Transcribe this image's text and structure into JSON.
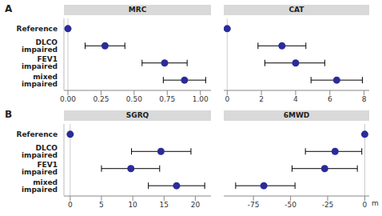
{
  "chart_data": [
    {
      "type": "forest",
      "title": "MRC",
      "annotations": [
        "A"
      ],
      "categories": [
        "Reference",
        "DLCO impaired",
        "FEV1 impaired",
        "mixed impaired"
      ],
      "values": [
        0,
        0.28,
        0.73,
        0.88
      ],
      "ci_low": [
        null,
        0.13,
        0.56,
        0.72
      ],
      "ci_high": [
        null,
        0.43,
        0.9,
        1.04
      ],
      "xlim": [
        -0.03,
        1.08
      ],
      "xticks": [
        {
          "value": 0,
          "label": "0.00"
        },
        {
          "value": 0.25,
          "label": "0.25"
        },
        {
          "value": 0.5,
          "label": "0.50"
        },
        {
          "value": 0.75,
          "label": "0.75"
        },
        {
          "value": 1,
          "label": "1.00"
        }
      ],
      "color": "#2b2b9a"
    },
    {
      "type": "forest",
      "title": "CAT",
      "categories": [
        "Reference",
        "DLCO impaired",
        "FEV1 impaired",
        "mixed impaired"
      ],
      "values": [
        0,
        3.2,
        4.0,
        6.4
      ],
      "ci_low": [
        null,
        1.8,
        2.2,
        4.9
      ],
      "ci_high": [
        null,
        4.6,
        5.7,
        7.9
      ],
      "xlim": [
        -0.2,
        8.3
      ],
      "xticks": [
        0,
        2,
        4,
        6,
        8
      ],
      "color": "#2b2b9a",
      "tick_labels": "x"
    },
    {
      "type": "forest",
      "title": "SGRQ",
      "annotations": [
        "B"
      ],
      "categories": [
        "Reference",
        "DLCO impaired",
        "FEV1 impaired",
        "mixed impaired"
      ],
      "values": [
        0,
        14.5,
        9.7,
        17.0
      ],
      "ci_low": [
        null,
        9.8,
        5.0,
        12.5
      ],
      "ci_high": [
        null,
        19.3,
        14.3,
        21.5
      ],
      "xlim": [
        -1,
        22.5
      ],
      "xticks": [
        0,
        5,
        10,
        15,
        20
      ],
      "color": "#2b2b9a"
    },
    {
      "type": "forest",
      "title": "6MWD",
      "x_label": "m",
      "categories": [
        "Reference",
        "DLCO impaired",
        "FEV1 impaired",
        "mixed impaired"
      ],
      "values": [
        0,
        -20,
        -27,
        -68
      ],
      "ci_low": [
        null,
        -40,
        -49,
        -87
      ],
      "ci_high": [
        null,
        -2,
        -5,
        -47
      ],
      "xlim": [
        -95,
        3
      ],
      "xticks": [
        -75,
        -50,
        -25,
        0
      ],
      "color": "#2b2b9a",
      "tick_labels": "x"
    }
  ]
}
